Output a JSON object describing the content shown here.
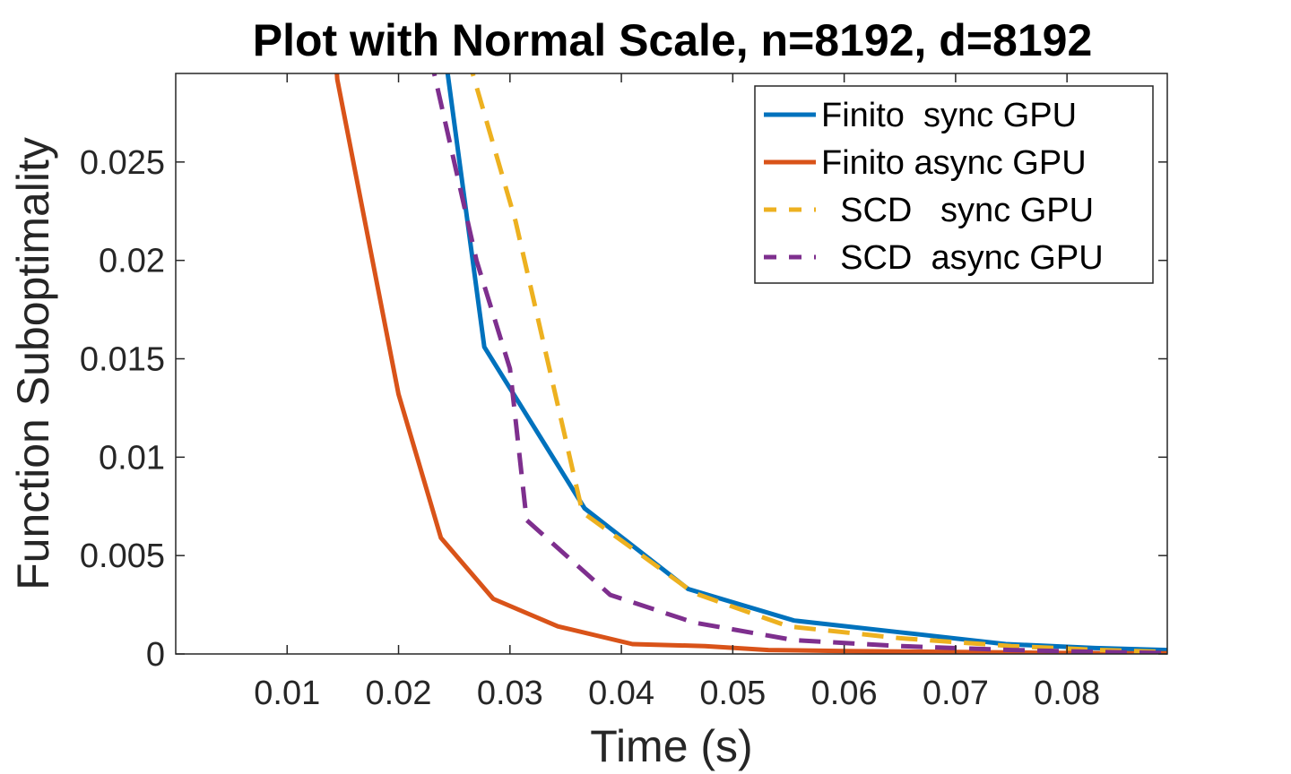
{
  "chart_data": {
    "type": "line",
    "title": "Plot with Normal Scale, n=8192, d=8192",
    "xlabel": "Time (s)",
    "ylabel": "Function Suboptimality",
    "xlim": [
      0,
      0.089
    ],
    "ylim": [
      0,
      0.0295
    ],
    "xticks": [
      0.01,
      0.02,
      0.03,
      0.04,
      0.05,
      0.06,
      0.07,
      0.08
    ],
    "xtick_labels": [
      "0.01",
      "0.02",
      "0.03",
      "0.04",
      "0.05",
      "0.06",
      "0.07",
      "0.08"
    ],
    "yticks": [
      0,
      0.005,
      0.01,
      0.015,
      0.02,
      0.025
    ],
    "ytick_labels": [
      "0",
      "0.005",
      "0.01",
      "0.015",
      "0.02",
      "0.025"
    ],
    "grid": false,
    "legend_position": "top-right",
    "series": [
      {
        "name": "Finito  sync GPU",
        "color": "#0072BD",
        "style": "solid",
        "x": [
          0.0205,
          0.0277,
          0.0367,
          0.046,
          0.0555,
          0.065,
          0.0745,
          0.0825,
          0.089
        ],
        "y": [
          0.046,
          0.0156,
          0.0074,
          0.0033,
          0.0017,
          0.0011,
          0.0005,
          0.0003,
          0.0002
        ]
      },
      {
        "name": "Finito async GPU",
        "color": "#D95319",
        "style": "solid",
        "x": [
          0.0125,
          0.0145,
          0.02,
          0.0238,
          0.0285,
          0.0343,
          0.041,
          0.0475,
          0.0532,
          0.06,
          0.07,
          0.08,
          0.089
        ],
        "y": [
          0.046,
          0.0292,
          0.0132,
          0.0059,
          0.0028,
          0.0014,
          0.0005,
          0.0004,
          0.0002,
          0.00015,
          0.0001,
          5e-05,
          3e-05
        ]
      },
      {
        "name": "  SCD   sync GPU",
        "color": "#EDB120",
        "style": "dashed",
        "x": [
          0.0255,
          0.0265,
          0.0305,
          0.0365,
          0.0465,
          0.055,
          0.065,
          0.075,
          0.083,
          0.089
        ],
        "y": [
          0.046,
          0.0298,
          0.022,
          0.0072,
          0.0031,
          0.0014,
          0.0008,
          0.0004,
          0.0002,
          0.0001
        ]
      },
      {
        "name": "  SCD  async GPU",
        "color": "#7E2F8E",
        "style": "dashed",
        "x": [
          0.0215,
          0.0232,
          0.027,
          0.03,
          0.0315,
          0.039,
          0.0465,
          0.0555,
          0.065,
          0.075,
          0.083,
          0.089
        ],
        "y": [
          0.046,
          0.0295,
          0.02,
          0.0145,
          0.0068,
          0.003,
          0.0016,
          0.0007,
          0.0004,
          0.0002,
          0.0001,
          5e-05
        ]
      }
    ]
  }
}
